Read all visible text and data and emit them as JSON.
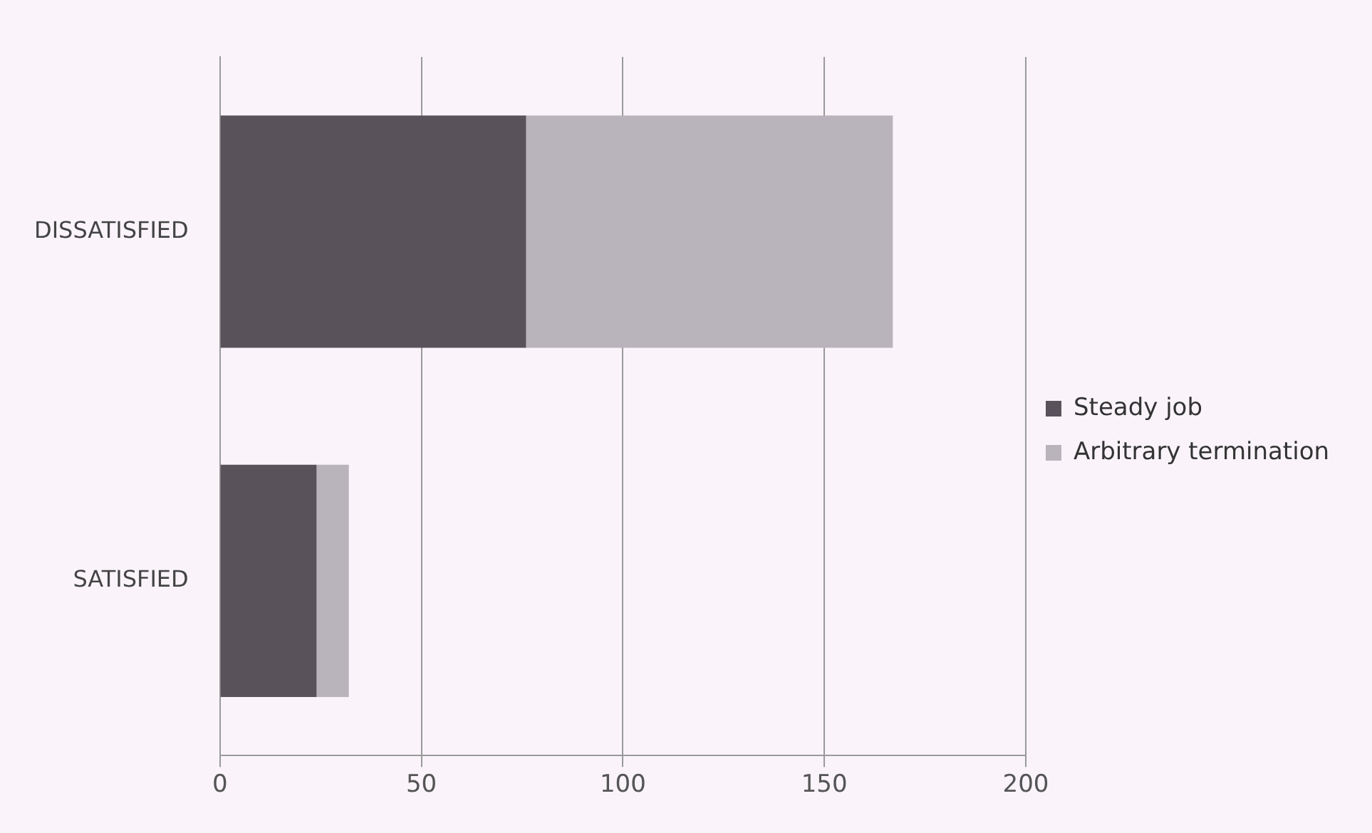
{
  "chart_data": {
    "type": "bar",
    "orientation": "horizontal",
    "stacked": true,
    "categories": [
      "DISSATISFIED",
      "SATISFIED"
    ],
    "series": [
      {
        "name": "Steady job",
        "color": "#59525b",
        "values": [
          76,
          24
        ]
      },
      {
        "name": "Arbitrary termination",
        "color": "#b9b3bb",
        "values": [
          91,
          8
        ]
      }
    ],
    "xlim": [
      0,
      200
    ],
    "xticks": [
      0,
      50,
      100,
      150,
      200
    ],
    "grid": "x",
    "legend": "right"
  }
}
